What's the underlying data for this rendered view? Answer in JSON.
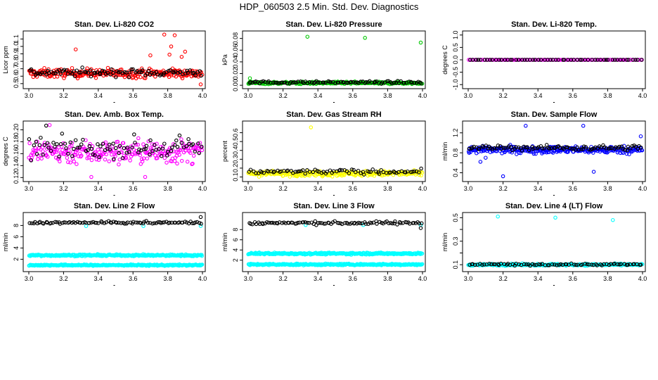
{
  "figure": {
    "title": "HDP_060503  2.5 Min. Std. Dev. Diagnostics"
  },
  "colors": {
    "black": "#000000",
    "red": "#ff0000",
    "green": "#00c800",
    "magenta": "#ff00ff",
    "yellow": "#ffff00",
    "blue": "#0000ff",
    "cyan": "#00ffff"
  },
  "chart_data": [
    {
      "type": "scatter",
      "title": "Stan. Dev. Li-820 CO2",
      "ylabel": "Licor ppm",
      "xlabel": "",
      "xlim": [
        3.0,
        4.0
      ],
      "ylim": [
        0.47,
        1.17
      ],
      "xticks": [
        3.0,
        3.2,
        3.4,
        3.6,
        3.8,
        4.0
      ],
      "xtick_labels": [
        "3.0",
        "3.2",
        "3.4",
        "3.6",
        "3.8",
        "4.0"
      ],
      "yticks": [
        0.5,
        0.6,
        0.7,
        0.8,
        0.9,
        1.0,
        1.1
      ],
      "ytick_labels": [
        "0.5",
        "0.6",
        "0.7",
        "0.8",
        "0.9",
        "1.0",
        "1.1"
      ],
      "series": [
        {
          "name": "series-1",
          "color": "#ff0000",
          "bands": [
            {
              "center": 0.64,
              "spread": 0.06
            }
          ],
          "n": 260,
          "outliers": [
            [
              3.27,
              0.96
            ],
            [
              3.78,
              1.16
            ],
            [
              3.82,
              1.0
            ],
            [
              3.84,
              1.15
            ],
            [
              3.81,
              0.89
            ],
            [
              3.9,
              0.93
            ],
            [
              3.88,
              0.86
            ],
            [
              3.7,
              0.88
            ],
            [
              3.99,
              0.49
            ]
          ]
        },
        {
          "name": "series-2",
          "color": "#000000",
          "bands": [
            {
              "center": 0.65,
              "spread": 0.05
            }
          ],
          "n": 95,
          "outliers": []
        }
      ]
    },
    {
      "type": "scatter",
      "title": "Stan. Dev. Li-820 Pressure",
      "ylabel": "kPa",
      "xlabel": "",
      "xlim": [
        3.0,
        4.0
      ],
      "ylim": [
        -0.001,
        0.088
      ],
      "xticks": [
        3.0,
        3.2,
        3.4,
        3.6,
        3.8,
        4.0
      ],
      "xtick_labels": [
        "3.0",
        "3.2",
        "3.4",
        "3.6",
        "3.8",
        "4.0"
      ],
      "yticks": [
        0.0,
        0.02,
        0.04,
        0.06,
        0.08
      ],
      "ytick_labels": [
        "0.00",
        "0.02",
        "0.04",
        "0.06",
        "0.08"
      ],
      "series": [
        {
          "name": "series-1",
          "color": "#00c800",
          "bands": [
            {
              "center": 0.004,
              "spread": 0.002
            }
          ],
          "n": 260,
          "outliers": [
            [
              3.34,
              0.083
            ],
            [
              3.67,
              0.081
            ],
            [
              3.99,
              0.073
            ],
            [
              3.01,
              0.012
            ]
          ]
        },
        {
          "name": "series-2",
          "color": "#000000",
          "bands": [
            {
              "center": 0.005,
              "spread": 0.002
            }
          ],
          "n": 95,
          "outliers": []
        }
      ]
    },
    {
      "type": "scatter",
      "title": "Stan. Dev. Li-820 Temp.",
      "ylabel": "degrees C",
      "xlabel": "",
      "xlim": [
        3.0,
        4.0
      ],
      "ylim": [
        -1.05,
        1.05
      ],
      "xticks": [
        3.0,
        3.2,
        3.4,
        3.6,
        3.8,
        4.0
      ],
      "xtick_labels": [
        "3.0",
        "3.2",
        "3.4",
        "3.6",
        "3.8",
        "4.0"
      ],
      "yticks": [
        -1.0,
        -0.5,
        0.0,
        0.5,
        1.0
      ],
      "ytick_labels": [
        "-1.0",
        "-0.5",
        "0.0",
        "0.5",
        "1.0"
      ],
      "series": [
        {
          "name": "series-1",
          "color": "#ff00ff",
          "bands": [
            {
              "center": 0.0,
              "spread": 0.0
            }
          ],
          "n": 120,
          "outliers": []
        },
        {
          "name": "series-2",
          "color": "#000000",
          "bands": [
            {
              "center": 0.0,
              "spread": 0.0
            }
          ],
          "n": 60,
          "outliers": []
        }
      ]
    },
    {
      "type": "scatter",
      "title": "Stan. Dev. Amb. Box Temp.",
      "ylabel": "degrees C",
      "xlabel": "",
      "xlim": [
        3.0,
        4.0
      ],
      "ylim": [
        0.118,
        0.21
      ],
      "xticks": [
        3.0,
        3.2,
        3.4,
        3.6,
        3.8,
        4.0
      ],
      "xtick_labels": [
        "3.0",
        "3.2",
        "3.4",
        "3.6",
        "3.8",
        "4.0"
      ],
      "yticks": [
        0.12,
        0.14,
        0.16,
        0.18,
        0.2
      ],
      "ytick_labels": [
        "0.12",
        "0.14",
        "0.16",
        "0.18",
        "0.20"
      ],
      "series": [
        {
          "name": "series-1",
          "color": "#ff00ff",
          "bands": [
            {
              "center": 0.163,
              "spread": 0.02
            }
          ],
          "n": 260,
          "outliers": [
            [
              3.36,
              0.121
            ],
            [
              3.67,
              0.121
            ],
            [
              3.12,
              0.208
            ]
          ]
        },
        {
          "name": "series-2",
          "color": "#000000",
          "bands": [
            {
              "center": 0.17,
              "spread": 0.016
            }
          ],
          "n": 90,
          "outliers": [
            [
              3.1,
              0.207
            ]
          ]
        }
      ]
    },
    {
      "type": "scatter",
      "title": "Stan. Dev. Gas Stream RH",
      "ylabel": "percent",
      "xlabel": "",
      "xlim": [
        3.0,
        4.0
      ],
      "ylim": [
        0.08,
        0.7
      ],
      "xticks": [
        3.0,
        3.2,
        3.4,
        3.6,
        3.8,
        4.0
      ],
      "xtick_labels": [
        "3.0",
        "3.2",
        "3.4",
        "3.6",
        "3.8",
        "4.0"
      ],
      "yticks": [
        0.1,
        0.2,
        0.3,
        0.4,
        0.5,
        0.6
      ],
      "ytick_labels": [
        "0.1",
        "0.2",
        "0.3",
        "0.4",
        "0.5",
        "0.6"
      ],
      "series": [
        {
          "name": "series-1",
          "color": "#ffff00",
          "bands": [
            {
              "center": 0.14,
              "spread": 0.03
            }
          ],
          "n": 260,
          "outliers": [
            [
              3.36,
              0.66
            ]
          ]
        },
        {
          "name": "series-2",
          "color": "#000000",
          "bands": [
            {
              "center": 0.16,
              "spread": 0.025
            }
          ],
          "n": 80,
          "outliers": []
        }
      ]
    },
    {
      "type": "scatter",
      "title": "Stan. Dev. Sample Flow",
      "ylabel": "ml/min",
      "xlabel": "",
      "xlim": [
        3.0,
        4.0
      ],
      "ylim": [
        0.28,
        1.38
      ],
      "xticks": [
        3.0,
        3.2,
        3.4,
        3.6,
        3.8,
        4.0
      ],
      "xtick_labels": [
        "3.0",
        "3.2",
        "3.4",
        "3.6",
        "3.8",
        "4.0"
      ],
      "yticks": [
        0.4,
        0.6,
        0.8,
        1.0,
        1.2
      ],
      "ytick_labels": [
        "0.4",
        "",
        "0.8",
        "",
        "1.2"
      ],
      "series": [
        {
          "name": "series-1",
          "color": "#0000ff",
          "bands": [
            {
              "center": 0.86,
              "spread": 0.07
            }
          ],
          "n": 280,
          "outliers": [
            [
              3.2,
              0.33
            ],
            [
              3.33,
              1.34
            ],
            [
              3.66,
              1.34
            ],
            [
              3.72,
              0.42
            ],
            [
              3.99,
              1.13
            ],
            [
              3.07,
              0.62
            ],
            [
              3.1,
              0.7
            ]
          ]
        },
        {
          "name": "series-2",
          "color": "#000000",
          "bands": [
            {
              "center": 0.9,
              "spread": 0.05
            }
          ],
          "n": 95,
          "outliers": []
        }
      ]
    },
    {
      "type": "scatter",
      "title": "Stan. Dev. Line 2 Flow",
      "ylabel": "ml/min",
      "xlabel": "",
      "xlim": [
        3.0,
        4.0
      ],
      "ylim": [
        0.3,
        9.8
      ],
      "xticks": [
        3.0,
        3.2,
        3.4,
        3.6,
        3.8,
        4.0
      ],
      "xtick_labels": [
        "3.0",
        "3.2",
        "3.4",
        "3.6",
        "3.8",
        "4.0"
      ],
      "yticks": [
        2,
        4,
        6,
        8
      ],
      "ytick_labels": [
        "2",
        "4",
        "6",
        "8"
      ],
      "series": [
        {
          "name": "series-1",
          "color": "#00ffff",
          "bands": [
            {
              "center": 2.7,
              "spread": 0.15
            },
            {
              "center": 0.95,
              "spread": 0.12
            }
          ],
          "n": 300,
          "outliers": [
            [
              3.33,
              7.9
            ],
            [
              3.66,
              7.9
            ],
            [
              3.99,
              7.9
            ]
          ]
        },
        {
          "name": "series-2",
          "color": "#000000",
          "bands": [
            {
              "center": 8.5,
              "spread": 0.2
            }
          ],
          "n": 95,
          "outliers": [
            [
              3.99,
              9.5
            ]
          ]
        }
      ]
    },
    {
      "type": "scatter",
      "title": "Stan. Dev. Line 3 Flow",
      "ylabel": "ml/min",
      "xlabel": "",
      "xlim": [
        3.0,
        4.0
      ],
      "ylim": [
        0.3,
        10.8
      ],
      "xticks": [
        3.0,
        3.2,
        3.4,
        3.6,
        3.8,
        4.0
      ],
      "xtick_labels": [
        "3.0",
        "3.2",
        "3.4",
        "3.6",
        "3.8",
        "4.0"
      ],
      "yticks": [
        2,
        4,
        6,
        8
      ],
      "ytick_labels": [
        "2",
        "4",
        "6",
        "8"
      ],
      "series": [
        {
          "name": "series-1",
          "color": "#00ffff",
          "bands": [
            {
              "center": 3.3,
              "spread": 0.18
            },
            {
              "center": 1.15,
              "spread": 0.15
            }
          ],
          "n": 300,
          "outliers": [
            [
              3.33,
              8.9
            ],
            [
              3.66,
              8.9
            ],
            [
              3.99,
              8.9
            ]
          ]
        },
        {
          "name": "series-2",
          "color": "#000000",
          "bands": [
            {
              "center": 9.3,
              "spread": 0.3
            }
          ],
          "n": 95,
          "outliers": [
            [
              3.99,
              8.3
            ]
          ]
        }
      ]
    },
    {
      "type": "scatter",
      "title": "Stan. Dev. Line 4 (LT) Flow",
      "ylabel": "ml/min",
      "xlabel": "",
      "xlim": [
        3.0,
        4.0
      ],
      "ylim": [
        0.065,
        0.52
      ],
      "xticks": [
        3.0,
        3.2,
        3.4,
        3.6,
        3.8,
        4.0
      ],
      "xtick_labels": [
        "3.0",
        "3.2",
        "3.4",
        "3.6",
        "3.8",
        "4.0"
      ],
      "yticks": [
        0.1,
        0.2,
        0.3,
        0.4,
        0.5
      ],
      "ytick_labels": [
        "0.1",
        "",
        "0.3",
        "",
        "0.5"
      ],
      "series": [
        {
          "name": "series-1",
          "color": "#00ffff",
          "bands": [
            {
              "center": 0.1,
              "spread": 0.008
            }
          ],
          "n": 280,
          "outliers": [
            [
              3.17,
              0.51
            ],
            [
              3.5,
              0.5
            ],
            [
              3.83,
              0.48
            ]
          ]
        },
        {
          "name": "series-2",
          "color": "#000000",
          "bands": [
            {
              "center": 0.102,
              "spread": 0.008
            }
          ],
          "n": 80,
          "outliers": []
        }
      ]
    }
  ]
}
